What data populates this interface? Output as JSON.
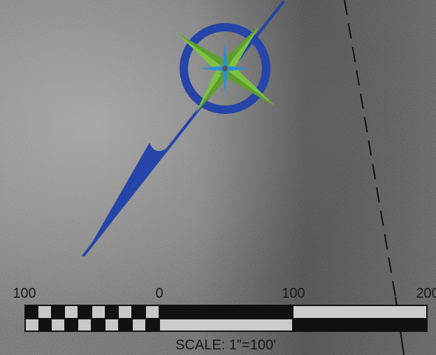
{
  "scale_bar": {
    "labels": [
      "100",
      "0",
      "100",
      "200"
    ],
    "caption": "SCALE: 1\"=100'"
  }
}
